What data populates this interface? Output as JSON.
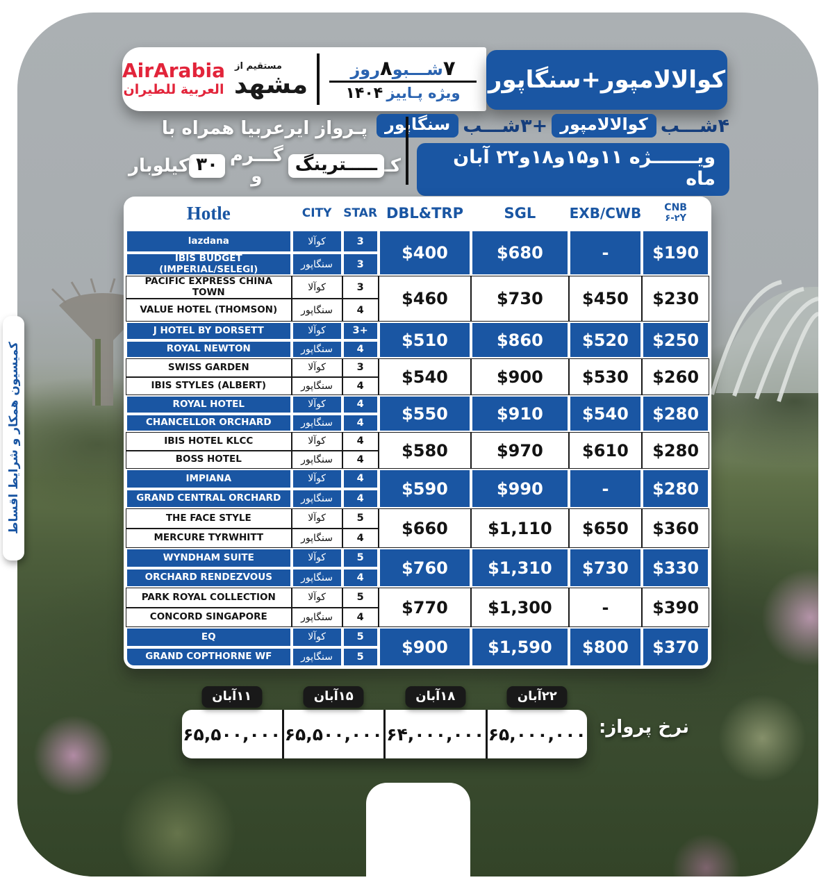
{
  "header": {
    "title": "کوالالامپور+سنگاپور",
    "duration": {
      "n1": "۷",
      "w1": "شـــبو",
      "n2": "۸",
      "w2": "روز"
    },
    "season_label": "ویژه پـاییز",
    "season_year": "۱۴۰۴",
    "origin_label": "مستقیم از",
    "origin_city": "مشهد",
    "airline_en": "AirArabia",
    "airline_ar": "العربية للطيران"
  },
  "infobar": {
    "r1_a": "۴شـــب",
    "r1_pill1": "کوالالامپور",
    "r1_b": "+۳شـــب",
    "r1_pill2": "سنگاپور",
    "r2": "ویـــــــژه ۱۱و۱۵و۱۸و۲۲ آبان ماه",
    "l1": "پـرواز ایرعربیا همراه با",
    "l2_k": "کـ",
    "l2_pill1": "ـــــترینگ",
    "l2_mid": "گـــرم و",
    "l2_pill2": "۳۰",
    "l2_tail": "کیلوبار"
  },
  "side_tab": {
    "text": "کمیسیون همکار و شرایط اقساط"
  },
  "table": {
    "headers": {
      "hotel": "Hotle",
      "city": "CITY",
      "star": "STAR",
      "dbl": "DBL&TRP",
      "sgl": "SGL",
      "exb": "EXB/CWB",
      "cnb1": "CNB",
      "cnb2": "۶-۲Y"
    },
    "groups": [
      {
        "style": "blue",
        "rows": [
          {
            "hotel": "lazdana",
            "city": "کوآلا",
            "star": "3"
          },
          {
            "hotel": "IBIS BUDGET (IMPERIAL/SELEGI)",
            "city": "سنگاپور",
            "star": "3"
          }
        ],
        "dbl": "$400",
        "sgl": "$680",
        "exb": "-",
        "cnb": "$190"
      },
      {
        "style": "white",
        "rows": [
          {
            "hotel": "PACIFIC EXPRESS CHINA TOWN",
            "city": "کوآلا",
            "star": "3"
          },
          {
            "hotel": "VALUE HOTEL (THOMSON)",
            "city": "سنگاپور",
            "star": "4"
          }
        ],
        "dbl": "$460",
        "sgl": "$730",
        "exb": "$450",
        "cnb": "$230"
      },
      {
        "style": "blue",
        "rows": [
          {
            "hotel": "J HOTEL BY DORSETT",
            "city": "کوآلا",
            "star": "3+"
          },
          {
            "hotel": "ROYAL NEWTON",
            "city": "سنگاپور",
            "star": "4"
          }
        ],
        "dbl": "$510",
        "sgl": "$860",
        "exb": "$520",
        "cnb": "$250"
      },
      {
        "style": "white",
        "rows": [
          {
            "hotel": "SWISS GARDEN",
            "city": "کوآلا",
            "star": "3"
          },
          {
            "hotel": "IBIS STYLES (ALBERT)",
            "city": "سنگاپور",
            "star": "4"
          }
        ],
        "dbl": "$540",
        "sgl": "$900",
        "exb": "$530",
        "cnb": "$260"
      },
      {
        "style": "blue",
        "rows": [
          {
            "hotel": "ROYAL HOTEL",
            "city": "کوآلا",
            "star": "4"
          },
          {
            "hotel": "CHANCELLOR ORCHARD",
            "city": "سنگاپور",
            "star": "4"
          }
        ],
        "dbl": "$550",
        "sgl": "$910",
        "exb": "$540",
        "cnb": "$280"
      },
      {
        "style": "white",
        "rows": [
          {
            "hotel": "IBIS HOTEL KLCC",
            "city": "کوآلا",
            "star": "4"
          },
          {
            "hotel": "BOSS HOTEL",
            "city": "سنگاپور",
            "star": "4"
          }
        ],
        "dbl": "$580",
        "sgl": "$970",
        "exb": "$610",
        "cnb": "$280"
      },
      {
        "style": "blue",
        "rows": [
          {
            "hotel": "IMPIANA",
            "city": "کوآلا",
            "star": "4"
          },
          {
            "hotel": "GRAND CENTRAL ORCHARD",
            "city": "سنگاپور",
            "star": "4"
          }
        ],
        "dbl": "$590",
        "sgl": "$990",
        "exb": "-",
        "cnb": "$280"
      },
      {
        "style": "white",
        "rows": [
          {
            "hotel": "THE FACE STYLE",
            "city": "کوآلا",
            "star": "5"
          },
          {
            "hotel": "MERCURE TYRWHITT",
            "city": "سنگاپور",
            "star": "4"
          }
        ],
        "dbl": "$660",
        "sgl": "$1,110",
        "exb": "$650",
        "cnb": "$360"
      },
      {
        "style": "blue",
        "rows": [
          {
            "hotel": "WYNDHAM SUITE",
            "city": "کوآلا",
            "star": "5"
          },
          {
            "hotel": "ORCHARD RENDEZVOUS",
            "city": "سنگاپور",
            "star": "4"
          }
        ],
        "dbl": "$760",
        "sgl": "$1,310",
        "exb": "$730",
        "cnb": "$330"
      },
      {
        "style": "white",
        "rows": [
          {
            "hotel": "PARK ROYAL COLLECTION",
            "city": "کوآلا",
            "star": "5"
          },
          {
            "hotel": "CONCORD SINGAPORE",
            "city": "سنگاپور",
            "star": "4"
          }
        ],
        "dbl": "$770",
        "sgl": "$1,300",
        "exb": "-",
        "cnb": "$390"
      },
      {
        "style": "blue",
        "rows": [
          {
            "hotel": "EQ",
            "city": "کوآلا",
            "star": "5"
          },
          {
            "hotel": "GRAND COPTHORNE WF",
            "city": "سنگاپور",
            "star": "5"
          }
        ],
        "dbl": "$900",
        "sgl": "$1,590",
        "exb": "$800",
        "cnb": "$370"
      }
    ]
  },
  "flight": {
    "label": "نرخ پرواز:",
    "items": [
      {
        "date": "۱۱آبان",
        "price": "۶۵,۵۰۰,۰۰۰"
      },
      {
        "date": "۱۵آبان",
        "price": "۶۵,۵۰۰,۰۰۰"
      },
      {
        "date": "۱۸آبان",
        "price": "۶۴,۰۰۰,۰۰۰"
      },
      {
        "date": "۲۲آبان",
        "price": "۶۵,۰۰۰,۰۰۰"
      }
    ]
  },
  "colors": {
    "accent_blue": "#1a56a3",
    "navy_text": "#143d7c",
    "airline_red": "#e2243a",
    "tab_black": "#191919"
  }
}
